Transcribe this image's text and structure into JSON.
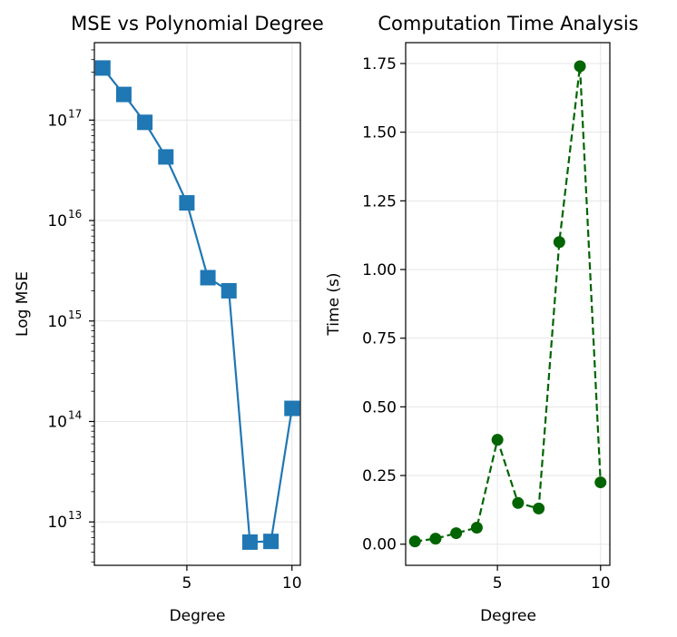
{
  "chart_data": [
    {
      "type": "line",
      "title": "MSE vs Polynomial Degree",
      "xlabel": "Degree",
      "ylabel": "Log MSE",
      "yscale": "log",
      "xlim": [
        0.6,
        10.4
      ],
      "ylim": [
        3700000000000.0,
        5.9e+17
      ],
      "xticks": [
        5,
        10
      ],
      "yticks": [
        {
          "value": 10000000000000.0,
          "base": "10",
          "exp": "13"
        },
        {
          "value": 100000000000000.0,
          "base": "10",
          "exp": "14"
        },
        {
          "value": 1000000000000000.0,
          "base": "10",
          "exp": "15"
        },
        {
          "value": 1e+16,
          "base": "10",
          "exp": "16"
        },
        {
          "value": 1e+17,
          "base": "10",
          "exp": "17"
        }
      ],
      "grid": true,
      "series": [
        {
          "x": [
            1,
            2,
            3,
            4,
            5,
            6,
            7,
            8,
            9,
            10
          ],
          "y": [
            3.3e+17,
            1.8e+17,
            9.5e+16,
            4.3e+16,
            1.5e+16,
            2700000000000000.0,
            2000000000000000.0,
            6300000000000.0,
            6400000000000.0,
            135000000000000.0
          ],
          "color": "#1f77b4",
          "marker": "square",
          "linestyle": "solid"
        }
      ]
    },
    {
      "type": "line",
      "title": "Computation Time Analysis",
      "xlabel": "Degree",
      "ylabel": "Time (s)",
      "xlim": [
        0.55,
        10.45
      ],
      "ylim": [
        -0.077,
        1.826
      ],
      "xticks": [
        5,
        10
      ],
      "yticks": [
        "0.00",
        "0.25",
        "0.50",
        "0.75",
        "1.00",
        "1.25",
        "1.50",
        "1.75"
      ],
      "grid": true,
      "series": [
        {
          "x": [
            1,
            2,
            3,
            4,
            5,
            6,
            7,
            8,
            9,
            10
          ],
          "y": [
            0.01,
            0.02,
            0.04,
            0.06,
            0.38,
            0.15,
            0.13,
            1.1,
            1.74,
            0.225
          ],
          "color": "#006400",
          "marker": "circle",
          "linestyle": "dashed"
        }
      ]
    }
  ]
}
